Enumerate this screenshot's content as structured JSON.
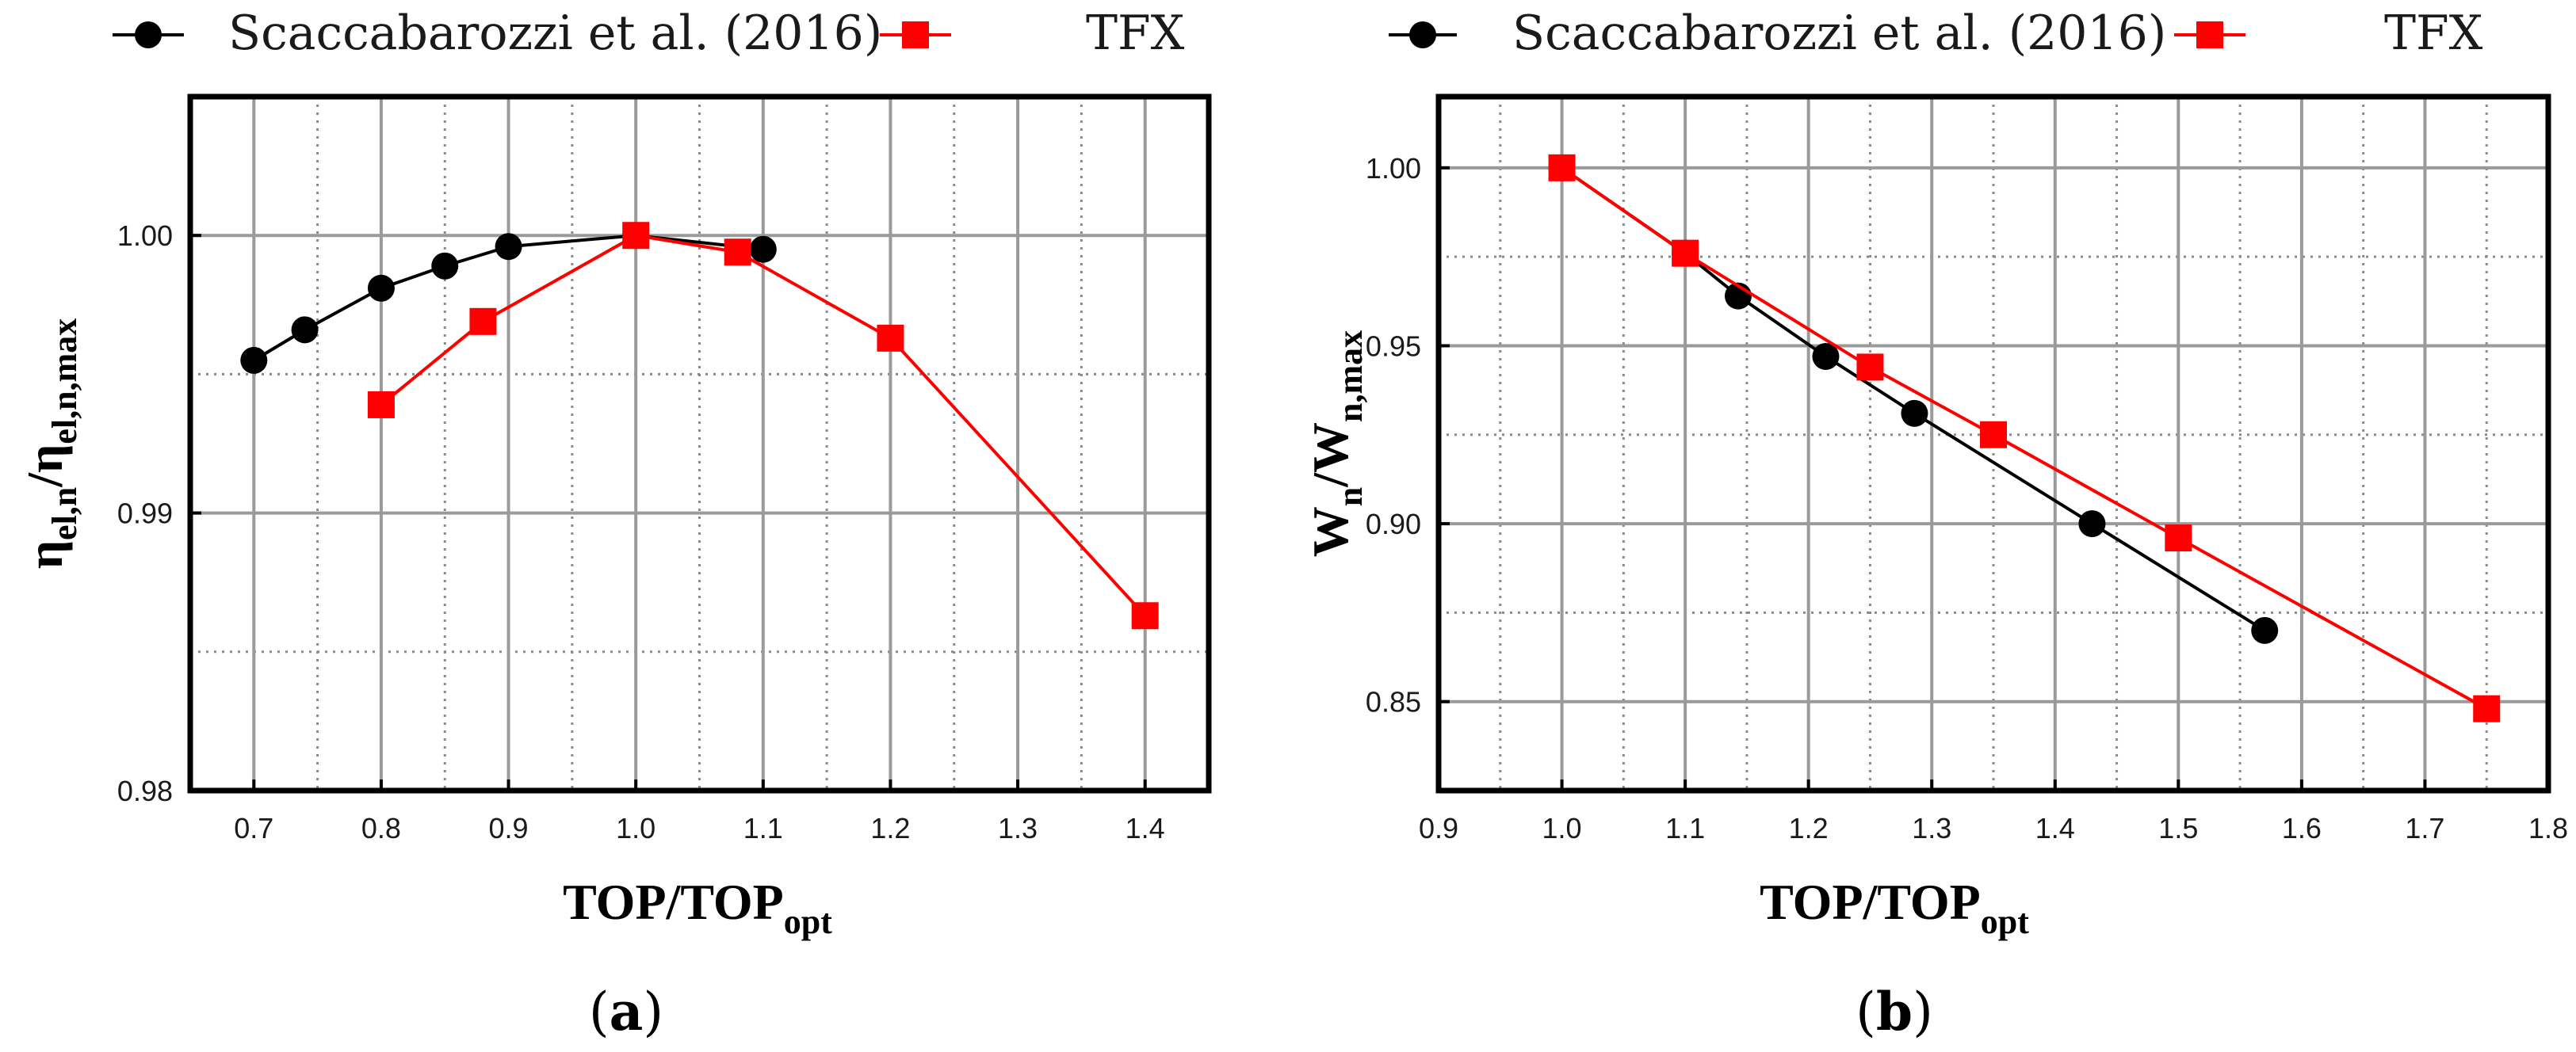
{
  "chart_data": [
    {
      "type": "line",
      "panel_label": "a",
      "xlabel": {
        "main": "TOP/TOP",
        "sub": "opt"
      },
      "ylabel": {
        "parts": [
          "η",
          "el,n",
          "/η",
          "el,n,max"
        ]
      },
      "xlim": [
        0.65,
        1.45
      ],
      "ylim": [
        0.98,
        1.005
      ],
      "xticks": [
        0.7,
        0.8,
        0.9,
        1.0,
        1.1,
        1.2,
        1.3,
        1.4
      ],
      "xtick_labels": [
        "0.7",
        "0.8",
        "0.9",
        "1.0",
        "1.1",
        "1.2",
        "1.3",
        "1.4"
      ],
      "yticks": [
        0.98,
        0.99,
        1.0
      ],
      "ytick_labels": [
        "0.98",
        "0.99",
        "1.00"
      ],
      "grid": true,
      "legend_position": "top, outside plot",
      "series": [
        {
          "name": "Scaccabarozzi et al. (2016)",
          "color": "#000000",
          "marker": "circle",
          "x": [
            0.7,
            0.74,
            0.8,
            0.85,
            0.9,
            1.0,
            1.1
          ],
          "y": [
            0.9955,
            0.9966,
            0.9981,
            0.9989,
            0.9996,
            1.0,
            0.9995
          ]
        },
        {
          "name": "TFX",
          "color": "#ff0000",
          "marker": "square",
          "x": [
            0.8,
            0.88,
            1.0,
            1.08,
            1.2,
            1.4
          ],
          "y": [
            0.9939,
            0.9969,
            1.0,
            0.9994,
            0.9963,
            0.9863
          ]
        }
      ]
    },
    {
      "type": "line",
      "panel_label": "b",
      "xlabel": {
        "main": "TOP/TOP",
        "sub": "opt"
      },
      "ylabel": {
        "parts": [
          "W",
          "n",
          "/W",
          "n,max"
        ]
      },
      "xlim": [
        0.9,
        1.8
      ],
      "ylim": [
        0.825,
        1.02
      ],
      "xticks": [
        0.9,
        1.0,
        1.1,
        1.2,
        1.3,
        1.4,
        1.5,
        1.6,
        1.7,
        1.8
      ],
      "xtick_labels": [
        "0.9",
        "1.0",
        "1.1",
        "1.2",
        "1.3",
        "1.4",
        "1.5",
        "1.6",
        "1.7",
        "1.8"
      ],
      "yticks": [
        0.85,
        0.9,
        0.95,
        1.0
      ],
      "ytick_labels": [
        "0.85",
        "0.90",
        "0.95",
        "1.00"
      ],
      "grid": true,
      "legend_position": "top, outside plot",
      "series": [
        {
          "name": "Scaccabarozzi et al. (2016)",
          "color": "#000000",
          "marker": "circle",
          "x": [
            1.0,
            1.1,
            1.143,
            1.214,
            1.286,
            1.43,
            1.57
          ],
          "y": [
            1.0,
            0.976,
            0.964,
            0.947,
            0.931,
            0.9,
            0.87
          ]
        },
        {
          "name": "TFX",
          "color": "#ff0000",
          "marker": "square",
          "x": [
            1.0,
            1.1,
            1.25,
            1.35,
            1.5,
            1.75
          ],
          "y": [
            1.0,
            0.976,
            0.944,
            0.925,
            0.896,
            0.848
          ]
        }
      ]
    }
  ]
}
